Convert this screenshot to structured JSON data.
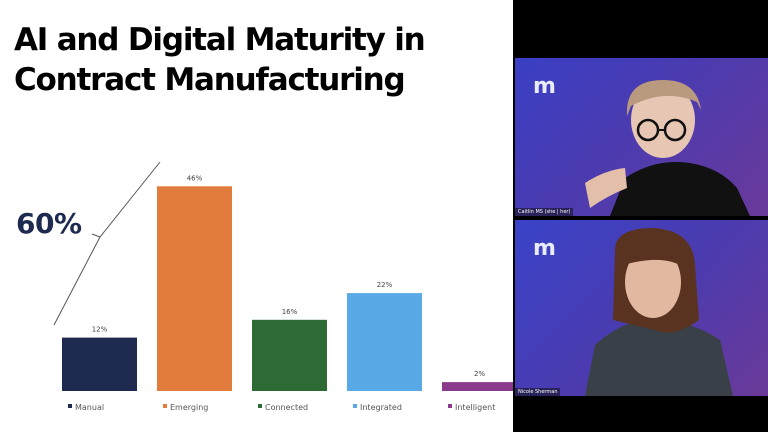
{
  "slide": {
    "title_line1": "AI and Digital Maturity in",
    "title_line2": "Contract Manufacturing",
    "callout": "60%"
  },
  "participants": [
    {
      "name": "Caitlin MS (she | her)",
      "logo": "m"
    },
    {
      "name": "Nicole Sherman",
      "logo": "m"
    }
  ],
  "chart_data": {
    "type": "bar",
    "categories": [
      "Manual",
      "Emerging",
      "Connected",
      "Integrated",
      "Intelligent"
    ],
    "values": [
      12,
      46,
      16,
      22,
      2
    ],
    "value_labels": [
      "12%",
      "46%",
      "16%",
      "22%",
      "2%"
    ],
    "colors": [
      "#1e2a4f",
      "#e17c3c",
      "#2e6b34",
      "#59a9e6",
      "#8a3a8c"
    ],
    "ylim": [
      0,
      50
    ],
    "legend": "bottom",
    "grid": false
  }
}
